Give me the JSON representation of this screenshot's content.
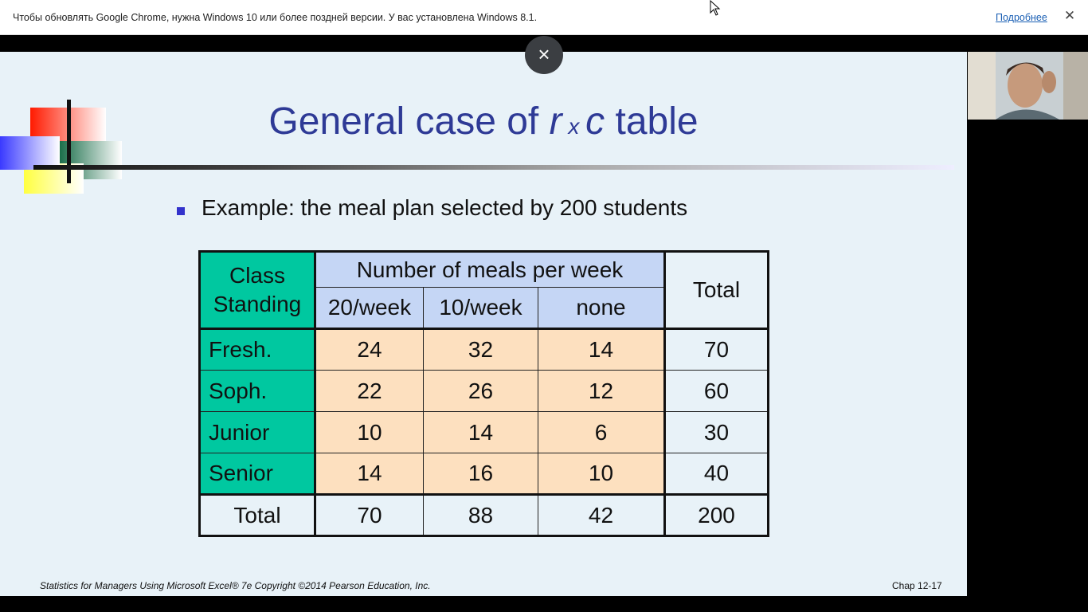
{
  "infobar": {
    "message": "Чтобы обновлять Google Chrome, нужна Windows 10 или более поздней версии. У вас установлена Windows 8.1.",
    "link": "Подробнее",
    "close_icon": "close-icon"
  },
  "overlay": {
    "close_glyph": "×"
  },
  "slide": {
    "title_part1": "General case of ",
    "title_r": "r",
    "title_x": " x ",
    "title_c": "c",
    "title_part2": " table",
    "bullet": "Example: the meal plan selected by 200 students",
    "table": {
      "class_standing": [
        "Class",
        "Standing"
      ],
      "group_header": "Number of meals per week",
      "columns": [
        "20/week",
        "10/week",
        "none"
      ],
      "total_header": "Total",
      "rows": [
        {
          "label": "Fresh.",
          "values": [
            "24",
            "32",
            "14"
          ],
          "total": "70"
        },
        {
          "label": "Soph.",
          "values": [
            "22",
            "26",
            "12"
          ],
          "total": "60"
        },
        {
          "label": "Junior",
          "values": [
            "10",
            "14",
            "6"
          ],
          "total": "30"
        },
        {
          "label": "Senior",
          "values": [
            "14",
            "16",
            "10"
          ],
          "total": "40"
        }
      ],
      "total_row": {
        "label": "Total",
        "values": [
          "70",
          "88",
          "42"
        ],
        "total": "200"
      }
    },
    "footer_left": "Statistics for Managers Using Microsoft Excel® 7e Copyright ©2014 Pearson Education, Inc.",
    "footer_right": "Chap 12-17"
  },
  "colors": {
    "title": "#2e3a96",
    "class_standing_bg": "#00c8a0",
    "header_bg": "#c5d6f5",
    "values_bg": "#fde0bf",
    "slide_bg": "#e8f2f8"
  }
}
